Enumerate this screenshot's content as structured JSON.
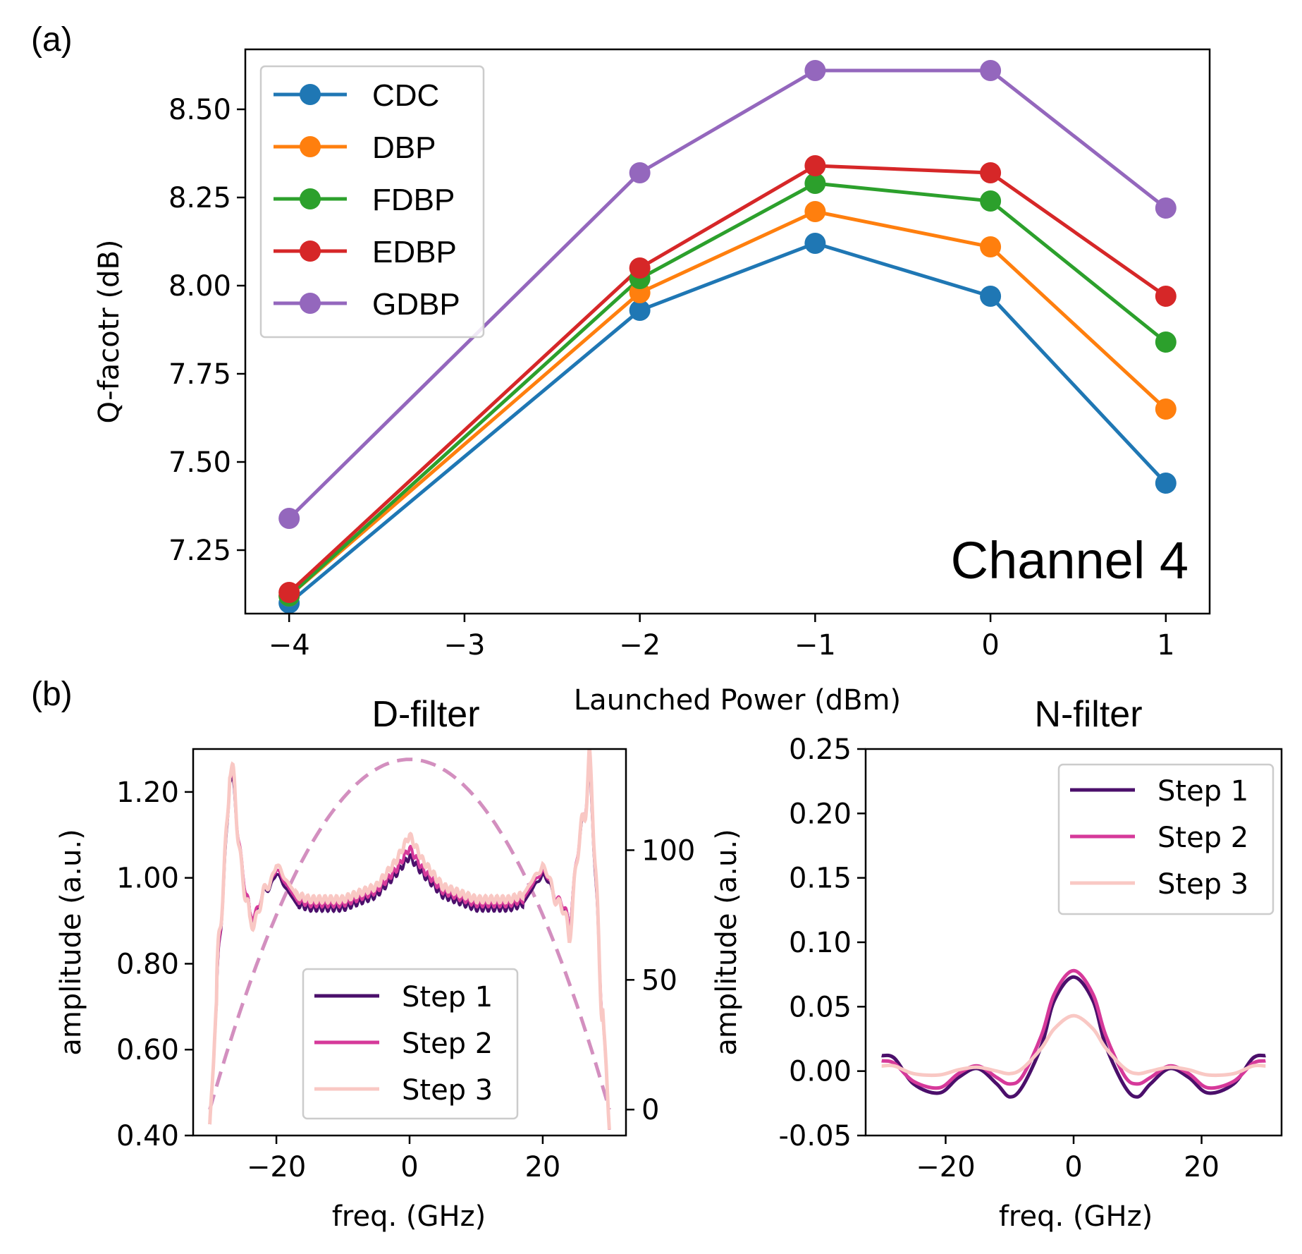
{
  "panels": {
    "a": "(a)",
    "b": "(b)"
  },
  "chart_data": [
    {
      "type": "line",
      "panel": "(a)",
      "xlabel": "Launched Power (dBm)",
      "ylabel": "Q-facotr (dB)",
      "annotation": "Channel 4",
      "xlim": [
        -4.25,
        1.25
      ],
      "ylim": [
        7.07,
        8.67
      ],
      "xticks": [
        -4,
        -3,
        -2,
        -1,
        0,
        1
      ],
      "xtick_labels": [
        "−4",
        "−3",
        "−2",
        "−1",
        "0",
        "1"
      ],
      "yticks": [
        7.25,
        7.5,
        7.75,
        8.0,
        8.25,
        8.5
      ],
      "ytick_labels": [
        "7.25",
        "7.50",
        "7.75",
        "8.00",
        "8.25",
        "8.50"
      ],
      "legend_position": "top-left",
      "x": [
        -4,
        -2,
        -1,
        0,
        1
      ],
      "series": [
        {
          "name": "CDC",
          "color": "#1f77b4",
          "values": [
            7.1,
            7.93,
            8.12,
            7.97,
            7.44
          ]
        },
        {
          "name": "DBP",
          "color": "#ff7f0e",
          "values": [
            7.12,
            7.98,
            8.21,
            8.11,
            7.65
          ]
        },
        {
          "name": "FDBP",
          "color": "#2ca02c",
          "values": [
            7.12,
            8.02,
            8.29,
            8.24,
            7.84
          ]
        },
        {
          "name": "EDBP",
          "color": "#d62728",
          "values": [
            7.13,
            8.05,
            8.34,
            8.32,
            7.97
          ]
        },
        {
          "name": "GDBP",
          "color": "#9467bd",
          "values": [
            7.34,
            8.32,
            8.61,
            8.61,
            8.22
          ]
        }
      ]
    },
    {
      "type": "line",
      "title": "D-filter",
      "xlabel": "freq. (GHz)",
      "ylabel": "amplitude (a.u.)",
      "xlim": [
        -32.5,
        32.5
      ],
      "ylim": [
        0.4,
        1.3
      ],
      "xticks": [
        -20,
        0,
        20
      ],
      "xtick_labels": [
        "−20",
        "0",
        "20"
      ],
      "yticks": [
        0.4,
        0.6,
        0.8,
        1.0,
        1.2
      ],
      "ytick_labels": [
        "0.40",
        "0.60",
        "0.80",
        "1.00",
        "1.20"
      ],
      "y2lim": [
        -10,
        139
      ],
      "y2ticks": [
        0,
        50,
        100
      ],
      "y2tick_labels": [
        "0",
        "50",
        "100"
      ],
      "legend_position": "lower-center",
      "secondary_curve": {
        "style": "dashed",
        "color": "#d38fbf",
        "axis": "right",
        "shape": "parabola",
        "x": [
          -30,
          -20,
          -10,
          0,
          10,
          20,
          30
        ],
        "values": [
          0,
          75,
          120,
          135,
          120,
          75,
          0
        ]
      },
      "series": [
        {
          "name": "Step 1",
          "color": "#4b0f6b",
          "x": [
            -30,
            -27,
            -24,
            -20,
            -17,
            -15,
            -10,
            -5,
            -2,
            0,
            2,
            5,
            10,
            15,
            17,
            20,
            24,
            27,
            30
          ],
          "values": [
            0.42,
            1.25,
            0.9,
            1.01,
            0.94,
            0.93,
            0.93,
            0.96,
            1.01,
            1.05,
            1.01,
            0.96,
            0.93,
            0.93,
            0.94,
            1.01,
            0.9,
            1.25,
            0.42
          ]
        },
        {
          "name": "Step 2",
          "color": "#d6399a",
          "x": [
            -30,
            -27,
            -24,
            -20,
            -17,
            -15,
            -10,
            -5,
            -2,
            0,
            2,
            5,
            10,
            15,
            17,
            20,
            24,
            27,
            30
          ],
          "values": [
            0.42,
            1.26,
            0.9,
            1.02,
            0.95,
            0.94,
            0.94,
            0.97,
            1.02,
            1.07,
            1.02,
            0.97,
            0.94,
            0.94,
            0.95,
            1.02,
            0.9,
            1.26,
            0.42
          ]
        },
        {
          "name": "Step 3",
          "color": "#f9c8c4",
          "x": [
            -30,
            -27,
            -24,
            -20,
            -17,
            -15,
            -10,
            -5,
            -2,
            0,
            2,
            5,
            10,
            15,
            17,
            20,
            24,
            27,
            30
          ],
          "values": [
            0.42,
            1.27,
            0.88,
            1.03,
            0.96,
            0.95,
            0.95,
            0.98,
            1.04,
            1.1,
            1.04,
            0.98,
            0.95,
            0.95,
            0.96,
            1.03,
            0.88,
            1.27,
            0.42
          ]
        }
      ]
    },
    {
      "type": "line",
      "title": "N-filter",
      "xlabel": "freq. (GHz)",
      "ylabel": "amplitude (a.u.)",
      "xlim": [
        -32.5,
        32.5
      ],
      "ylim": [
        -0.05,
        0.25
      ],
      "xticks": [
        -20,
        0,
        20
      ],
      "xtick_labels": [
        "−20",
        "0",
        "20"
      ],
      "yticks": [
        -0.05,
        0.0,
        0.05,
        0.1,
        0.15,
        0.2,
        0.25
      ],
      "ytick_labels": [
        "-0.05",
        "0.00",
        "0.05",
        "0.10",
        "0.15",
        "0.20",
        "0.25"
      ],
      "legend_position": "top-right",
      "series": [
        {
          "name": "Step 1",
          "color": "#4b0f6b",
          "x": [
            -30,
            -28,
            -25,
            -21,
            -18,
            -15,
            -12,
            -10,
            -8,
            -5,
            -3,
            0,
            3,
            5,
            8,
            10,
            12,
            15,
            18,
            21,
            25,
            28,
            30
          ],
          "values": [
            0.012,
            0.01,
            -0.01,
            -0.017,
            -0.005,
            0.002,
            -0.01,
            -0.02,
            -0.012,
            0.02,
            0.055,
            0.073,
            0.055,
            0.02,
            -0.012,
            -0.02,
            -0.01,
            0.002,
            -0.005,
            -0.017,
            -0.01,
            0.01,
            0.012
          ]
        },
        {
          "name": "Step 2",
          "color": "#d6399a",
          "x": [
            -30,
            -28,
            -25,
            -21,
            -18,
            -15,
            -12,
            -10,
            -8,
            -5,
            -3,
            0,
            3,
            5,
            8,
            10,
            12,
            15,
            18,
            21,
            25,
            28,
            30
          ],
          "values": [
            0.008,
            0.006,
            -0.008,
            -0.013,
            -0.002,
            0.004,
            -0.005,
            -0.01,
            -0.004,
            0.028,
            0.06,
            0.078,
            0.06,
            0.028,
            -0.004,
            -0.01,
            -0.005,
            0.004,
            -0.002,
            -0.013,
            -0.008,
            0.006,
            0.008
          ]
        },
        {
          "name": "Step 3",
          "color": "#f9c8c4",
          "x": [
            -30,
            -28,
            -25,
            -21,
            -18,
            -15,
            -12,
            -10,
            -8,
            -5,
            -3,
            0,
            3,
            5,
            8,
            10,
            12,
            15,
            18,
            21,
            25,
            28,
            30
          ],
          "values": [
            0.004,
            0.004,
            -0.002,
            -0.003,
            0.001,
            0.003,
            0.0,
            -0.002,
            0.002,
            0.018,
            0.033,
            0.043,
            0.033,
            0.018,
            0.002,
            -0.002,
            0.0,
            0.003,
            0.001,
            -0.003,
            -0.002,
            0.004,
            0.004
          ]
        }
      ]
    }
  ]
}
